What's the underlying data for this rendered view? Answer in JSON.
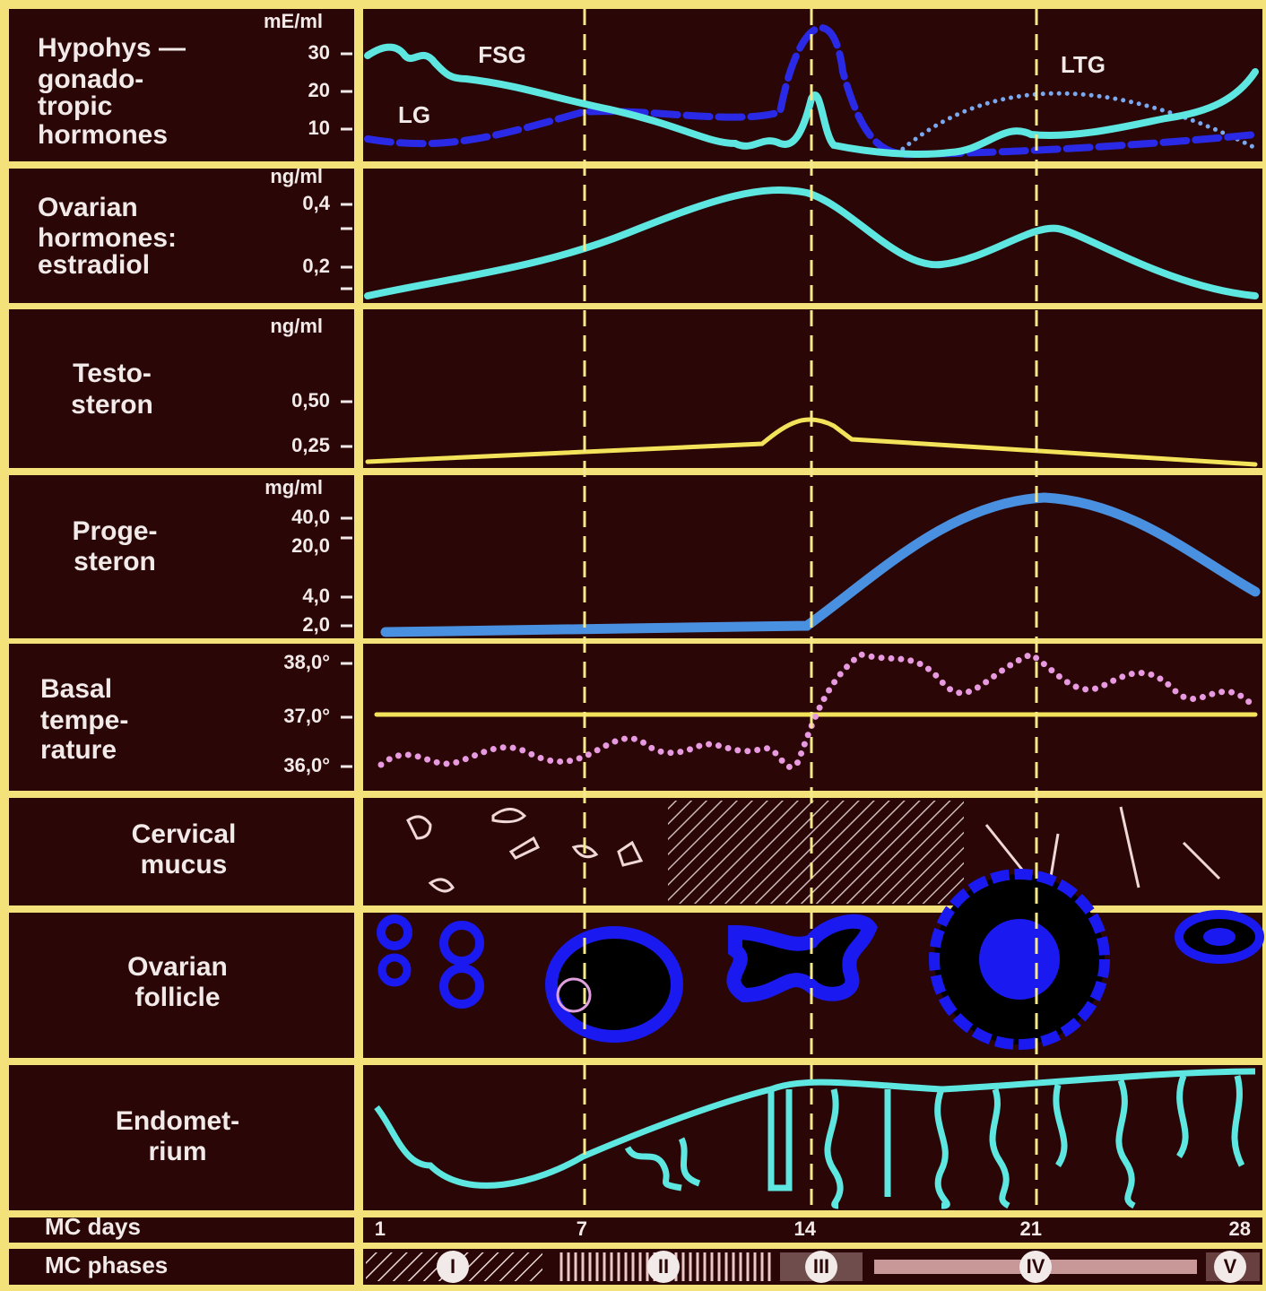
{
  "rows": [
    {
      "label": [
        "Hypohys —",
        "gonado-",
        "tropic",
        "hormones"
      ],
      "unit": "mE/ml",
      "ticks": [
        "30",
        "20",
        "10"
      ],
      "annotations": [
        "FSG",
        "LG",
        "LTG"
      ]
    },
    {
      "label": [
        "Ovarian",
        "hormones:",
        "estradiol"
      ],
      "unit": "ng/ml",
      "ticks": [
        "0,4",
        "0,2"
      ]
    },
    {
      "label": [
        "Testo-",
        "steron"
      ],
      "unit": "ng/ml",
      "ticks": [
        "0,50",
        "0,25"
      ]
    },
    {
      "label": [
        "Proge-",
        "steron"
      ],
      "unit": "mg/ml",
      "ticks": [
        "40,0",
        "20,0",
        "4,0",
        "2,0"
      ]
    },
    {
      "label": [
        "Basal",
        "tempe-",
        "rature"
      ],
      "ticks": [
        "38,0°",
        "37,0°",
        "36,0°"
      ]
    },
    {
      "label": [
        "Cervical",
        "mucus"
      ]
    },
    {
      "label": [
        "Ovarian",
        "follicle"
      ]
    },
    {
      "label": [
        "Endomet-",
        "rium"
      ]
    }
  ],
  "days": {
    "label": "MC days",
    "ticks": [
      "1",
      "7",
      "14",
      "21",
      "28"
    ]
  },
  "phases": {
    "label": "MC phases",
    "items": [
      "I",
      "II",
      "III",
      "IV",
      "V"
    ]
  }
}
